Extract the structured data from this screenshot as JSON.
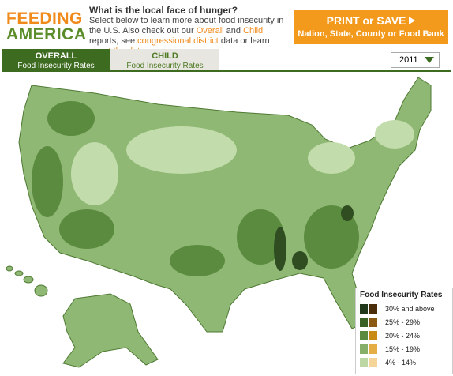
{
  "header": {
    "logo": [
      "FEEDING",
      "AMERICA"
    ],
    "title": "What is the local face of hunger?",
    "intro": [
      "Select below to learn more about food insecurity in the U.S. Also check out our ",
      "Overall",
      " and ",
      "Child",
      " reports, see ",
      "congressional district",
      " data or learn ",
      "about the data",
      "."
    ]
  },
  "print_button": {
    "title": "PRINT or SAVE",
    "subtitle": "Nation, State, County or Food Bank"
  },
  "tabs": [
    {
      "title": "OVERALL",
      "subtitle": "Food Insecurity Rates"
    },
    {
      "title": "CHILD",
      "subtitle": "Food Insecurity Rates"
    }
  ],
  "year_select": "2011",
  "legend": {
    "title": "Food Insecurity Rates",
    "items": [
      {
        "label": "30% and above",
        "colors": [
          "#22381a",
          "#4a2e0c"
        ]
      },
      {
        "label": "25% - 29%",
        "colors": [
          "#3b6125",
          "#8b5a12"
        ]
      },
      {
        "label": "20% - 24%",
        "colors": [
          "#5a8a3e",
          "#c98a14"
        ]
      },
      {
        "label": "15% - 19%",
        "colors": [
          "#86b06a",
          "#e5ae45"
        ]
      },
      {
        "label": "4% - 14%",
        "colors": [
          "#bcd6a4",
          "#f3d59a"
        ]
      }
    ]
  }
}
